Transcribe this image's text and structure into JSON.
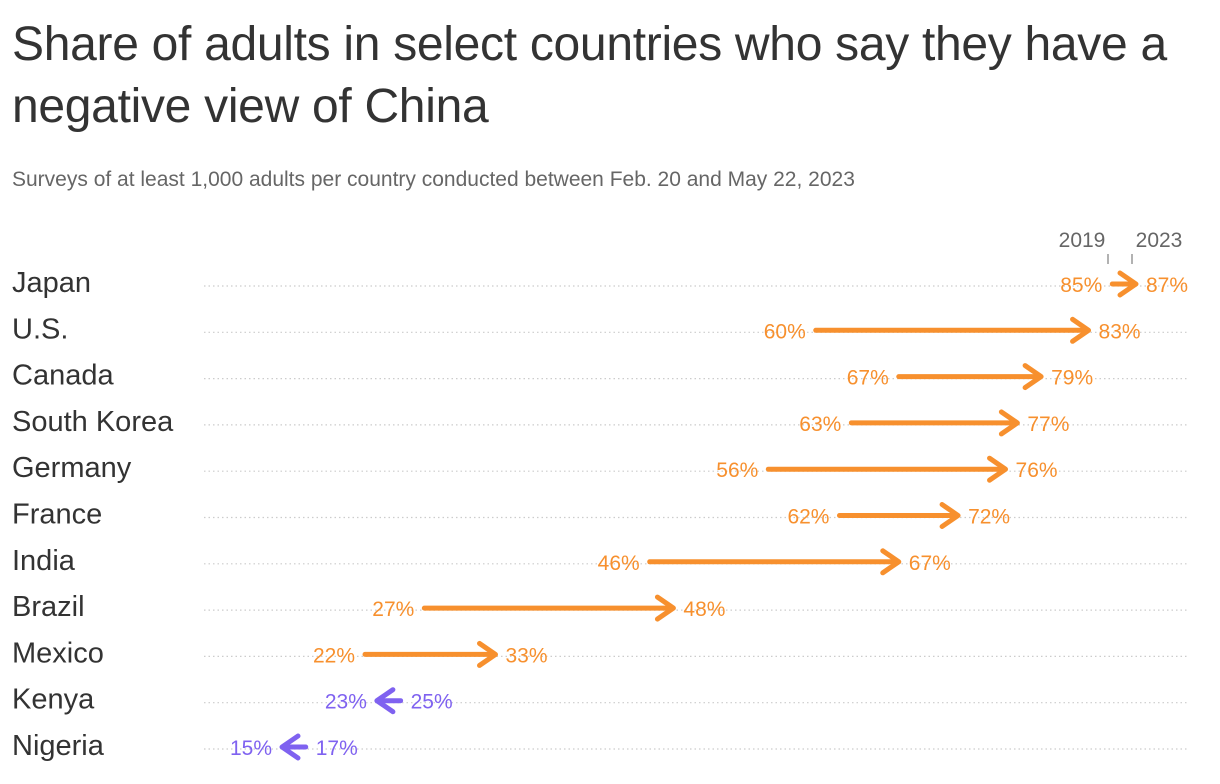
{
  "title": "Share of adults in select countries who say they have a negative view of China",
  "subtitle": "Surveys of at least 1,000 adults per country conducted between Feb. 20 and May 22, 2023",
  "colors": {
    "increase": "#f7902e",
    "decrease": "#7f62f0",
    "gridline": "#cccccc",
    "legend_tick": "#999999"
  },
  "chart_data": {
    "type": "arrow",
    "title": "Share of adults in select countries who say they have a negative view of China",
    "subtitle": "Surveys of at least 1,000 adults per country conducted between Feb. 20 and May 22, 2023",
    "legend": {
      "start_label": "2019",
      "end_label": "2023",
      "placement": "top-right"
    },
    "value_format": "percent",
    "xlim": [
      15,
      87
    ],
    "series": [
      {
        "name": "2019",
        "values": [
          85,
          60,
          67,
          63,
          56,
          62,
          46,
          27,
          22,
          25,
          17
        ]
      },
      {
        "name": "2023",
        "values": [
          87,
          83,
          79,
          77,
          76,
          72,
          67,
          48,
          33,
          23,
          15
        ]
      }
    ],
    "rows": [
      {
        "country": "Japan",
        "y2019": 85,
        "y2023": 87,
        "label2019": "85%",
        "label2023": "87%"
      },
      {
        "country": "U.S.",
        "y2019": 60,
        "y2023": 83,
        "label2019": "60%",
        "label2023": "83%"
      },
      {
        "country": "Canada",
        "y2019": 67,
        "y2023": 79,
        "label2019": "67%",
        "label2023": "79%"
      },
      {
        "country": "South Korea",
        "y2019": 63,
        "y2023": 77,
        "label2019": "63%",
        "label2023": "77%"
      },
      {
        "country": "Germany",
        "y2019": 56,
        "y2023": 76,
        "label2019": "56%",
        "label2023": "76%"
      },
      {
        "country": "France",
        "y2019": 62,
        "y2023": 72,
        "label2019": "62%",
        "label2023": "72%"
      },
      {
        "country": "India",
        "y2019": 46,
        "y2023": 67,
        "label2019": "46%",
        "label2023": "67%"
      },
      {
        "country": "Brazil",
        "y2019": 27,
        "y2023": 48,
        "label2019": "27%",
        "label2023": "48%"
      },
      {
        "country": "Mexico",
        "y2019": 22,
        "y2023": 33,
        "label2019": "22%",
        "label2023": "33%"
      },
      {
        "country": "Kenya",
        "y2019": 25,
        "y2023": 23,
        "label2019": "25%",
        "label2023": "23%"
      },
      {
        "country": "Nigeria",
        "y2019": 17,
        "y2023": 15,
        "label2019": "17%",
        "label2023": "15%"
      }
    ]
  }
}
